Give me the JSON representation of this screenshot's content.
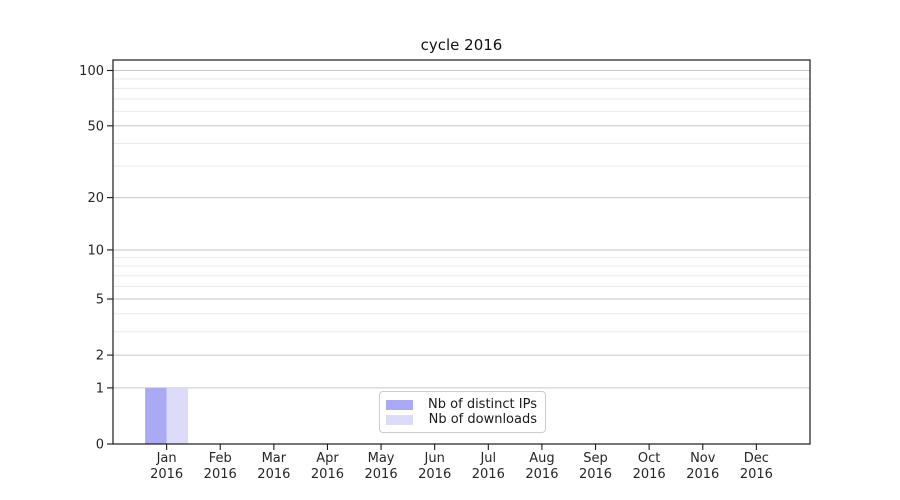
{
  "chart_data": {
    "type": "bar",
    "title": "cycle 2016",
    "categories": [
      "Jan",
      "Feb",
      "Mar",
      "Apr",
      "May",
      "Jun",
      "Jul",
      "Aug",
      "Sep",
      "Oct",
      "Nov",
      "Dec"
    ],
    "category_year": "2016",
    "series": [
      {
        "name": "Nb of distinct IPs",
        "color": "#a9a9f4",
        "values": [
          1,
          0,
          0,
          0,
          0,
          0,
          0,
          0,
          0,
          0,
          0,
          0
        ]
      },
      {
        "name": "Nb of downloads",
        "color": "#dcdcf9",
        "values": [
          1,
          0,
          0,
          0,
          0,
          0,
          0,
          0,
          0,
          0,
          0,
          0
        ]
      }
    ],
    "y_axis": {
      "scale": "log1p",
      "ylim": [
        0,
        114
      ],
      "major_ticks": [
        0,
        1,
        2,
        5,
        10,
        20,
        50,
        100
      ],
      "minor_ticks": [
        3,
        4,
        6,
        7,
        8,
        9,
        30,
        40,
        60,
        70,
        80,
        90
      ]
    },
    "xlabel": "",
    "ylabel": "",
    "grid": "both horizontal",
    "legend": {
      "position": "lower center",
      "entries": [
        "Nb of distinct IPs",
        "Nb of downloads"
      ]
    }
  }
}
